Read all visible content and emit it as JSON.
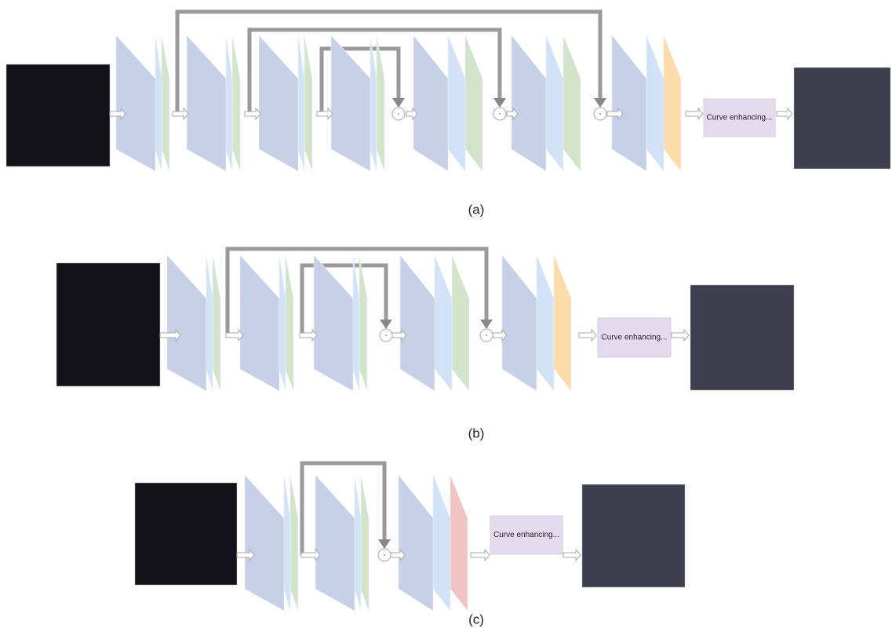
{
  "panels": [
    {
      "label": "Curve enhancing...",
      "caption": "(a)"
    },
    {
      "label": "Curve enhancing...",
      "caption": "(b)"
    },
    {
      "label": "Curve enhancing...",
      "caption": "(c)"
    }
  ]
}
